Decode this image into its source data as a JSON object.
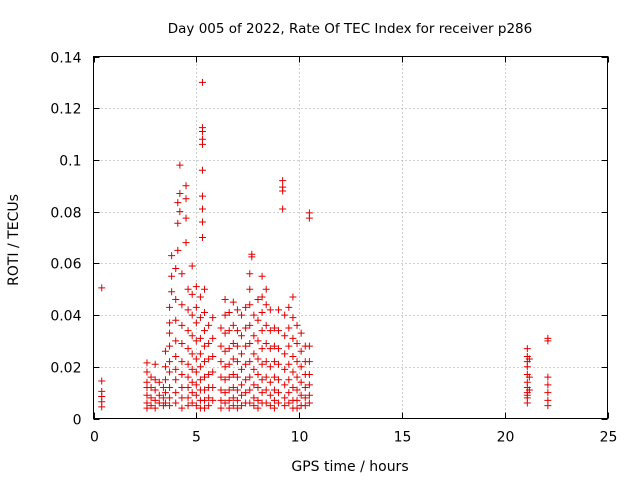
{
  "chart_data": {
    "type": "scatter",
    "title": "Day 005 of 2022, Rate Of TEC Index for receiver p286",
    "xlabel": "GPS time / hours",
    "ylabel": "ROTI / TECUs",
    "xlim": [
      0,
      25
    ],
    "ylim": [
      0,
      0.14
    ],
    "x_ticks": [
      0,
      5,
      10,
      15,
      20,
      25
    ],
    "y_ticks": [
      0,
      0.02,
      0.04,
      0.06,
      0.08,
      0.1,
      0.12,
      0.14
    ],
    "x_tick_labels": [
      "0",
      "5",
      "10",
      "15",
      "20",
      "25"
    ],
    "y_tick_labels": [
      "0",
      "0.02",
      "0.04",
      "0.06",
      "0.08",
      "0.1",
      "0.12",
      "0.14"
    ],
    "grid": true,
    "marker": "plus",
    "color": "#e00000",
    "points": [
      [
        0.4,
        0.0505
      ],
      [
        0.4,
        0.0145
      ],
      [
        0.4,
        0.0105
      ],
      [
        0.4,
        0.0085
      ],
      [
        0.4,
        0.0065
      ],
      [
        0.4,
        0.0045
      ],
      [
        2.6,
        0.0215
      ],
      [
        2.6,
        0.018
      ],
      [
        2.6,
        0.014
      ],
      [
        2.6,
        0.012
      ],
      [
        2.6,
        0.009
      ],
      [
        2.6,
        0.006
      ],
      [
        2.6,
        0.004
      ],
      [
        2.8,
        0.016
      ],
      [
        2.8,
        0.012
      ],
      [
        2.8,
        0.008
      ],
      [
        2.8,
        0.005
      ],
      [
        3.0,
        0.021
      ],
      [
        3.0,
        0.015
      ],
      [
        3.0,
        0.011
      ],
      [
        3.0,
        0.007
      ],
      [
        3.0,
        0.004
      ],
      [
        3.2,
        0.014
      ],
      [
        3.2,
        0.009
      ],
      [
        3.2,
        0.006
      ],
      [
        3.4,
        0.012
      ],
      [
        3.4,
        0.008
      ],
      [
        3.4,
        0.005
      ],
      [
        3.5,
        0.026
      ],
      [
        3.5,
        0.02
      ],
      [
        3.5,
        0.015
      ],
      [
        3.5,
        0.01
      ],
      [
        3.5,
        0.006
      ],
      [
        3.7,
        0.043
      ],
      [
        3.7,
        0.037
      ],
      [
        3.7,
        0.033
      ],
      [
        3.7,
        0.028
      ],
      [
        3.7,
        0.022
      ],
      [
        3.7,
        0.018
      ],
      [
        3.7,
        0.012
      ],
      [
        3.7,
        0.008
      ],
      [
        3.7,
        0.005
      ],
      [
        3.8,
        0.063
      ],
      [
        3.8,
        0.055
      ],
      [
        3.8,
        0.049
      ],
      [
        4.0,
        0.058
      ],
      [
        4.0,
        0.046
      ],
      [
        4.0,
        0.038
      ],
      [
        4.0,
        0.03
      ],
      [
        4.0,
        0.024
      ],
      [
        4.0,
        0.019
      ],
      [
        4.0,
        0.015
      ],
      [
        4.0,
        0.01
      ],
      [
        4.0,
        0.006
      ],
      [
        4.1,
        0.0835
      ],
      [
        4.1,
        0.0755
      ],
      [
        4.1,
        0.065
      ],
      [
        4.2,
        0.098
      ],
      [
        4.2,
        0.087
      ],
      [
        4.2,
        0.08
      ],
      [
        4.3,
        0.056
      ],
      [
        4.3,
        0.044
      ],
      [
        4.3,
        0.036
      ],
      [
        4.3,
        0.029
      ],
      [
        4.3,
        0.022
      ],
      [
        4.3,
        0.017
      ],
      [
        4.3,
        0.012
      ],
      [
        4.3,
        0.008
      ],
      [
        4.3,
        0.004
      ],
      [
        4.5,
        0.09
      ],
      [
        4.5,
        0.085
      ],
      [
        4.5,
        0.0775
      ],
      [
        4.5,
        0.068
      ],
      [
        4.6,
        0.05
      ],
      [
        4.6,
        0.042
      ],
      [
        4.6,
        0.034
      ],
      [
        4.6,
        0.027
      ],
      [
        4.6,
        0.021
      ],
      [
        4.6,
        0.016
      ],
      [
        4.6,
        0.012
      ],
      [
        4.6,
        0.008
      ],
      [
        4.6,
        0.005
      ],
      [
        4.8,
        0.059
      ],
      [
        4.8,
        0.048
      ],
      [
        4.8,
        0.04
      ],
      [
        4.8,
        0.032
      ],
      [
        4.8,
        0.025
      ],
      [
        4.8,
        0.019
      ],
      [
        4.8,
        0.014
      ],
      [
        4.8,
        0.01
      ],
      [
        4.8,
        0.006
      ],
      [
        5.0,
        0.051
      ],
      [
        5.0,
        0.043
      ],
      [
        5.0,
        0.037
      ],
      [
        5.0,
        0.03
      ],
      [
        5.0,
        0.023
      ],
      [
        5.0,
        0.018
      ],
      [
        5.0,
        0.013
      ],
      [
        5.0,
        0.009
      ],
      [
        5.0,
        0.005
      ],
      [
        5.2,
        0.047
      ],
      [
        5.2,
        0.039
      ],
      [
        5.2,
        0.031
      ],
      [
        5.2,
        0.025
      ],
      [
        5.2,
        0.02
      ],
      [
        5.2,
        0.015
      ],
      [
        5.2,
        0.011
      ],
      [
        5.2,
        0.007
      ],
      [
        5.2,
        0.004
      ],
      [
        5.3,
        0.13
      ],
      [
        5.3,
        0.1125
      ],
      [
        5.3,
        0.111
      ],
      [
        5.3,
        0.108
      ],
      [
        5.3,
        0.106
      ],
      [
        5.3,
        0.096
      ],
      [
        5.3,
        0.086
      ],
      [
        5.3,
        0.081
      ],
      [
        5.3,
        0.076
      ],
      [
        5.3,
        0.07
      ],
      [
        5.4,
        0.05
      ],
      [
        5.4,
        0.041
      ],
      [
        5.4,
        0.034
      ],
      [
        5.4,
        0.028
      ],
      [
        5.4,
        0.022
      ],
      [
        5.4,
        0.016
      ],
      [
        5.4,
        0.011
      ],
      [
        5.4,
        0.007
      ],
      [
        5.4,
        0.004
      ],
      [
        5.6,
        0.036
      ],
      [
        5.6,
        0.029
      ],
      [
        5.6,
        0.023
      ],
      [
        5.6,
        0.017
      ],
      [
        5.6,
        0.012
      ],
      [
        5.6,
        0.008
      ],
      [
        5.6,
        0.005
      ],
      [
        5.8,
        0.039
      ],
      [
        5.8,
        0.031
      ],
      [
        5.8,
        0.024
      ],
      [
        5.8,
        0.018
      ],
      [
        5.8,
        0.012
      ],
      [
        5.8,
        0.007
      ],
      [
        6.2,
        0.035
      ],
      [
        6.2,
        0.028
      ],
      [
        6.2,
        0.022
      ],
      [
        6.2,
        0.016
      ],
      [
        6.2,
        0.011
      ],
      [
        6.2,
        0.007
      ],
      [
        6.2,
        0.004
      ],
      [
        6.4,
        0.046
      ],
      [
        6.4,
        0.04
      ],
      [
        6.4,
        0.033
      ],
      [
        6.4,
        0.026
      ],
      [
        6.4,
        0.02
      ],
      [
        6.4,
        0.015
      ],
      [
        6.4,
        0.01
      ],
      [
        6.4,
        0.006
      ],
      [
        6.6,
        0.041
      ],
      [
        6.6,
        0.034
      ],
      [
        6.6,
        0.027
      ],
      [
        6.6,
        0.021
      ],
      [
        6.6,
        0.016
      ],
      [
        6.6,
        0.011
      ],
      [
        6.6,
        0.007
      ],
      [
        6.6,
        0.004
      ],
      [
        6.8,
        0.045
      ],
      [
        6.8,
        0.036
      ],
      [
        6.8,
        0.029
      ],
      [
        6.8,
        0.023
      ],
      [
        6.8,
        0.017
      ],
      [
        6.8,
        0.012
      ],
      [
        6.8,
        0.008
      ],
      [
        6.8,
        0.005
      ],
      [
        7.0,
        0.042
      ],
      [
        7.0,
        0.034
      ],
      [
        7.0,
        0.028
      ],
      [
        7.0,
        0.022
      ],
      [
        7.0,
        0.016
      ],
      [
        7.0,
        0.011
      ],
      [
        7.0,
        0.007
      ],
      [
        7.0,
        0.004
      ],
      [
        7.2,
        0.04
      ],
      [
        7.2,
        0.032
      ],
      [
        7.2,
        0.025
      ],
      [
        7.2,
        0.019
      ],
      [
        7.2,
        0.013
      ],
      [
        7.2,
        0.009
      ],
      [
        7.2,
        0.005
      ],
      [
        7.4,
        0.043
      ],
      [
        7.4,
        0.035
      ],
      [
        7.4,
        0.028
      ],
      [
        7.4,
        0.021
      ],
      [
        7.4,
        0.015
      ],
      [
        7.4,
        0.01
      ],
      [
        7.4,
        0.006
      ],
      [
        7.6,
        0.056
      ],
      [
        7.6,
        0.05
      ],
      [
        7.6,
        0.044
      ],
      [
        7.6,
        0.036
      ],
      [
        7.6,
        0.029
      ],
      [
        7.6,
        0.022
      ],
      [
        7.6,
        0.016
      ],
      [
        7.6,
        0.011
      ],
      [
        7.6,
        0.006
      ],
      [
        7.7,
        0.0635
      ],
      [
        7.7,
        0.0625
      ],
      [
        7.8,
        0.04
      ],
      [
        7.8,
        0.032
      ],
      [
        7.8,
        0.025
      ],
      [
        7.8,
        0.019
      ],
      [
        7.8,
        0.013
      ],
      [
        7.8,
        0.008
      ],
      [
        7.8,
        0.005
      ],
      [
        8.0,
        0.046
      ],
      [
        8.0,
        0.038
      ],
      [
        8.0,
        0.03
      ],
      [
        8.0,
        0.023
      ],
      [
        8.0,
        0.017
      ],
      [
        8.0,
        0.012
      ],
      [
        8.0,
        0.007
      ],
      [
        8.0,
        0.004
      ],
      [
        8.2,
        0.055
      ],
      [
        8.2,
        0.047
      ],
      [
        8.2,
        0.041
      ],
      [
        8.2,
        0.034
      ],
      [
        8.2,
        0.027
      ],
      [
        8.2,
        0.021
      ],
      [
        8.2,
        0.015
      ],
      [
        8.2,
        0.01
      ],
      [
        8.2,
        0.006
      ],
      [
        8.4,
        0.05
      ],
      [
        8.4,
        0.044
      ],
      [
        8.4,
        0.036
      ],
      [
        8.4,
        0.029
      ],
      [
        8.4,
        0.022
      ],
      [
        8.4,
        0.016
      ],
      [
        8.4,
        0.011
      ],
      [
        8.4,
        0.006
      ],
      [
        8.6,
        0.042
      ],
      [
        8.6,
        0.034
      ],
      [
        8.6,
        0.027
      ],
      [
        8.6,
        0.02
      ],
      [
        8.6,
        0.014
      ],
      [
        8.6,
        0.009
      ],
      [
        8.6,
        0.005
      ],
      [
        8.8,
        0.035
      ],
      [
        8.8,
        0.028
      ],
      [
        8.8,
        0.022
      ],
      [
        8.8,
        0.016
      ],
      [
        8.8,
        0.011
      ],
      [
        8.8,
        0.007
      ],
      [
        8.8,
        0.004
      ],
      [
        9.0,
        0.042
      ],
      [
        9.0,
        0.034
      ],
      [
        9.0,
        0.027
      ],
      [
        9.0,
        0.021
      ],
      [
        9.0,
        0.015
      ],
      [
        9.0,
        0.01
      ],
      [
        9.0,
        0.006
      ],
      [
        9.2,
        0.092
      ],
      [
        9.2,
        0.0895
      ],
      [
        9.2,
        0.088
      ],
      [
        9.2,
        0.081
      ],
      [
        9.3,
        0.04
      ],
      [
        9.3,
        0.032
      ],
      [
        9.3,
        0.025
      ],
      [
        9.3,
        0.019
      ],
      [
        9.3,
        0.013
      ],
      [
        9.3,
        0.008
      ],
      [
        9.3,
        0.005
      ],
      [
        9.5,
        0.043
      ],
      [
        9.5,
        0.035
      ],
      [
        9.5,
        0.028
      ],
      [
        9.5,
        0.021
      ],
      [
        9.5,
        0.015
      ],
      [
        9.5,
        0.01
      ],
      [
        9.5,
        0.006
      ],
      [
        9.7,
        0.047
      ],
      [
        9.7,
        0.039
      ],
      [
        9.7,
        0.031
      ],
      [
        9.7,
        0.024
      ],
      [
        9.7,
        0.018
      ],
      [
        9.7,
        0.012
      ],
      [
        9.7,
        0.007
      ],
      [
        9.7,
        0.004
      ],
      [
        9.9,
        0.036
      ],
      [
        9.9,
        0.029
      ],
      [
        9.9,
        0.022
      ],
      [
        9.9,
        0.016
      ],
      [
        9.9,
        0.011
      ],
      [
        9.9,
        0.007
      ],
      [
        9.9,
        0.004
      ],
      [
        10.1,
        0.033
      ],
      [
        10.1,
        0.026
      ],
      [
        10.1,
        0.02
      ],
      [
        10.1,
        0.014
      ],
      [
        10.1,
        0.009
      ],
      [
        10.1,
        0.005
      ],
      [
        10.3,
        0.028
      ],
      [
        10.3,
        0.022
      ],
      [
        10.3,
        0.017
      ],
      [
        10.3,
        0.012
      ],
      [
        10.3,
        0.008
      ],
      [
        10.3,
        0.005
      ],
      [
        10.5,
        0.0795
      ],
      [
        10.5,
        0.0775
      ],
      [
        10.5,
        0.028
      ],
      [
        10.5,
        0.022
      ],
      [
        10.5,
        0.017
      ],
      [
        10.5,
        0.013
      ],
      [
        10.5,
        0.009
      ],
      [
        10.5,
        0.006
      ],
      [
        21.1,
        0.027
      ],
      [
        21.1,
        0.024
      ],
      [
        21.1,
        0.022
      ],
      [
        21.1,
        0.02
      ],
      [
        21.1,
        0.017
      ],
      [
        21.1,
        0.014
      ],
      [
        21.1,
        0.012
      ],
      [
        21.1,
        0.01
      ],
      [
        21.1,
        0.009
      ],
      [
        21.1,
        0.008
      ],
      [
        21.1,
        0.006
      ],
      [
        21.2,
        0.023
      ],
      [
        21.2,
        0.016
      ],
      [
        21.2,
        0.011
      ],
      [
        22.1,
        0.031
      ],
      [
        22.1,
        0.03
      ],
      [
        22.1,
        0.016
      ],
      [
        22.1,
        0.013
      ],
      [
        22.1,
        0.01
      ],
      [
        22.1,
        0.007
      ],
      [
        22.1,
        0.005
      ]
    ]
  }
}
